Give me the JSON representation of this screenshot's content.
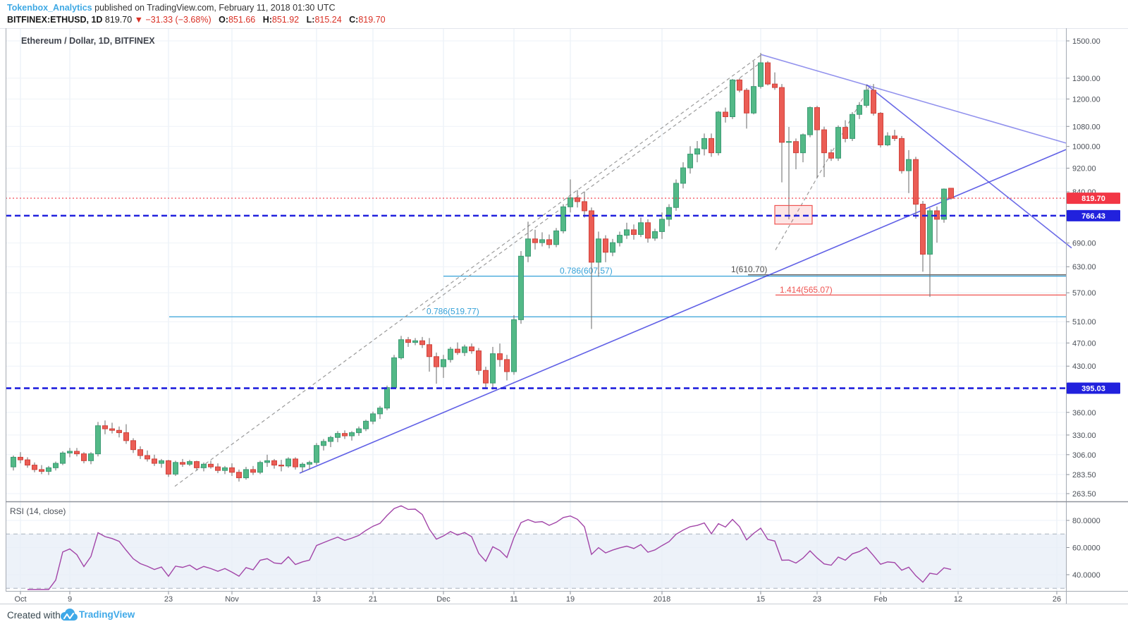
{
  "header": {
    "author": "Tokenbox_Analytics",
    "published": " published on TradingView.com, February 11, 2018 01:30 UTC",
    "symbol": "BITFINEX:ETHUSD, 1D",
    "last_price": "819.70",
    "change": "▼ −31.33 (−3.68%)",
    "ohlc": [
      {
        "label": "O:",
        "value": "851.66"
      },
      {
        "label": "H:",
        "value": "851.92"
      },
      {
        "label": "L:",
        "value": "815.24"
      },
      {
        "label": "C:",
        "value": "819.70"
      }
    ]
  },
  "chart_title": "Ethereum / Dollar, 1D, BITFINEX",
  "rsi_panel": {
    "label": "RSI (14, close)",
    "axis_ticks": [
      80,
      60,
      40
    ],
    "band_upper": 70,
    "band_lower": 30,
    "line_color": "#a245a8",
    "band_fill": "#e7eef7"
  },
  "footer": {
    "created": "Created with",
    "brand": "TradingView"
  },
  "price_axis": {
    "ticks": [
      1500,
      1300,
      1200,
      1080,
      1000,
      920,
      840,
      690,
      630,
      570,
      510,
      470,
      430,
      360,
      330,
      306,
      283.5,
      263.5
    ],
    "badges": [
      {
        "text": "819.70",
        "value": 819.7,
        "color": "#f23645"
      },
      {
        "text": "766.43",
        "value": 766.43,
        "color": "#2121dd"
      },
      {
        "text": "395.03",
        "value": 395.03,
        "color": "#2121dd"
      }
    ]
  },
  "time_axis": {
    "ticks": [
      {
        "label": "Oct",
        "i": 1
      },
      {
        "label": "9",
        "i": 8
      },
      {
        "label": "23",
        "i": 22
      },
      {
        "label": "Nov",
        "i": 31
      },
      {
        "label": "13",
        "i": 43
      },
      {
        "label": "21",
        "i": 51
      },
      {
        "label": "Dec",
        "i": 61
      },
      {
        "label": "11",
        "i": 71
      },
      {
        "label": "19",
        "i": 79
      },
      {
        "label": "2018",
        "i": 92
      },
      {
        "label": "15",
        "i": 106
      },
      {
        "label": "23",
        "i": 114
      },
      {
        "label": "Feb",
        "i": 123
      },
      {
        "label": "12",
        "i": 134
      },
      {
        "label": "26",
        "i": 148
      }
    ]
  },
  "chart_data": {
    "type": "candlestick",
    "symbol": "ETHUSD",
    "interval": "1D",
    "y_scale": "log",
    "y_range": [
      263.5,
      1500
    ],
    "up_color": "#53b987",
    "down_color": "#eb5d55",
    "candles": [
      [
        292,
        305,
        288,
        303
      ],
      [
        303,
        309,
        296,
        300
      ],
      [
        300,
        303,
        291,
        294
      ],
      [
        294,
        297,
        286,
        289
      ],
      [
        289,
        294,
        284,
        287
      ],
      [
        287,
        293,
        283,
        291
      ],
      [
        291,
        298,
        288,
        296
      ],
      [
        296,
        310,
        294,
        308
      ],
      [
        308,
        314,
        303,
        310
      ],
      [
        310,
        314,
        304,
        307
      ],
      [
        307,
        309,
        296,
        299
      ],
      [
        299,
        309,
        295,
        307
      ],
      [
        307,
        347,
        304,
        342
      ],
      [
        342,
        349,
        331,
        338
      ],
      [
        338,
        346,
        332,
        336
      ],
      [
        336,
        341,
        327,
        333
      ],
      [
        333,
        344,
        319,
        323
      ],
      [
        323,
        326,
        308,
        312
      ],
      [
        312,
        316,
        301,
        305
      ],
      [
        305,
        311,
        298,
        301
      ],
      [
        301,
        306,
        293,
        296
      ],
      [
        296,
        301,
        291,
        299
      ],
      [
        299,
        300,
        281,
        284
      ],
      [
        284,
        299,
        282,
        297
      ],
      [
        297,
        301,
        292,
        295
      ],
      [
        295,
        300,
        293,
        298
      ],
      [
        298,
        299,
        288,
        291
      ],
      [
        291,
        297,
        287,
        295
      ],
      [
        295,
        299,
        290,
        292
      ],
      [
        292,
        296,
        285,
        288
      ],
      [
        288,
        293,
        284,
        291
      ],
      [
        291,
        296,
        282,
        286
      ],
      [
        286,
        289,
        276,
        280
      ],
      [
        280,
        292,
        278,
        289
      ],
      [
        289,
        293,
        283,
        286
      ],
      [
        286,
        299,
        284,
        297
      ],
      [
        297,
        306,
        292,
        299
      ],
      [
        299,
        301,
        290,
        294
      ],
      [
        294,
        300,
        287,
        293
      ],
      [
        293,
        303,
        291,
        301
      ],
      [
        301,
        303,
        289,
        292
      ],
      [
        292,
        297,
        286,
        295
      ],
      [
        295,
        299,
        289,
        297
      ],
      [
        297,
        320,
        294,
        317
      ],
      [
        317,
        325,
        311,
        322
      ],
      [
        322,
        329,
        315,
        327
      ],
      [
        327,
        335,
        321,
        332
      ],
      [
        332,
        336,
        325,
        329
      ],
      [
        329,
        335,
        323,
        333
      ],
      [
        333,
        341,
        329,
        338
      ],
      [
        338,
        350,
        335,
        348
      ],
      [
        348,
        361,
        344,
        358
      ],
      [
        358,
        369,
        351,
        366
      ],
      [
        366,
        399,
        363,
        396
      ],
      [
        396,
        449,
        394,
        444
      ],
      [
        444,
        483,
        441,
        476
      ],
      [
        476,
        481,
        463,
        471
      ],
      [
        471,
        479,
        466,
        474
      ],
      [
        474,
        481,
        461,
        467
      ],
      [
        467,
        479,
        421,
        446
      ],
      [
        446,
        453,
        402,
        429
      ],
      [
        429,
        449,
        411,
        441
      ],
      [
        441,
        463,
        436,
        459
      ],
      [
        459,
        471,
        449,
        453
      ],
      [
        453,
        467,
        447,
        463
      ],
      [
        463,
        469,
        451,
        456
      ],
      [
        456,
        461,
        416,
        423
      ],
      [
        423,
        429,
        394,
        403
      ],
      [
        403,
        463,
        393,
        451
      ],
      [
        451,
        469,
        429,
        441
      ],
      [
        441,
        449,
        407,
        421
      ],
      [
        421,
        523,
        416,
        514
      ],
      [
        514,
        669,
        506,
        656
      ],
      [
        656,
        749,
        641,
        701
      ],
      [
        701,
        726,
        673,
        691
      ],
      [
        691,
        719,
        681,
        699
      ],
      [
        699,
        713,
        676,
        686
      ],
      [
        686,
        731,
        679,
        723
      ],
      [
        723,
        801,
        716,
        793
      ],
      [
        793,
        881,
        776,
        821
      ],
      [
        821,
        846,
        791,
        809
      ],
      [
        809,
        841,
        761,
        781
      ],
      [
        781,
        791,
        496,
        641
      ],
      [
        641,
        721,
        606,
        701
      ],
      [
        701,
        711,
        641,
        666
      ],
      [
        666,
        701,
        656,
        691
      ],
      [
        691,
        721,
        681,
        711
      ],
      [
        711,
        746,
        701,
        726
      ],
      [
        726,
        741,
        699,
        713
      ],
      [
        713,
        761,
        706,
        746
      ],
      [
        746,
        756,
        691,
        703
      ],
      [
        703,
        729,
        696,
        721
      ],
      [
        721,
        776,
        701,
        756
      ],
      [
        756,
        801,
        736,
        791
      ],
      [
        791,
        881,
        781,
        868
      ],
      [
        868,
        941,
        851,
        921
      ],
      [
        921,
        1001,
        901,
        971
      ],
      [
        971,
        1021,
        941,
        991
      ],
      [
        991,
        1051,
        966,
        1031
      ],
      [
        1031,
        1051,
        961,
        976
      ],
      [
        976,
        1146,
        966,
        1141
      ],
      [
        1141,
        1161,
        1096,
        1121
      ],
      [
        1121,
        1296,
        1111,
        1291
      ],
      [
        1291,
        1299,
        1231,
        1241
      ],
      [
        1241,
        1251,
        1071,
        1137
      ],
      [
        1137,
        1388,
        1131,
        1259
      ],
      [
        1259,
        1432,
        1249,
        1379
      ],
      [
        1379,
        1388,
        1264,
        1271
      ],
      [
        1271,
        1329,
        1243,
        1254
      ],
      [
        1254,
        1271,
        871,
        1016
      ],
      [
        1016,
        1078,
        756,
        1019
      ],
      [
        1019,
        1031,
        916,
        976
      ],
      [
        976,
        1051,
        941,
        1046
      ],
      [
        1046,
        1166,
        1036,
        1161
      ],
      [
        1161,
        1169,
        886,
        1066
      ],
      [
        1066,
        1079,
        889,
        976
      ],
      [
        976,
        989,
        946,
        956
      ],
      [
        956,
        1084,
        946,
        1076
      ],
      [
        1076,
        1106,
        1016,
        1031
      ],
      [
        1031,
        1141,
        1021,
        1131
      ],
      [
        1131,
        1186,
        1111,
        1171
      ],
      [
        1171,
        1268,
        1161,
        1241
      ],
      [
        1241,
        1271,
        1126,
        1136
      ],
      [
        1136,
        1141,
        996,
        1006
      ],
      [
        1006,
        1056,
        1001,
        1041
      ],
      [
        1041,
        1066,
        1021,
        1031
      ],
      [
        1031,
        1041,
        901,
        911
      ],
      [
        911,
        986,
        836,
        951
      ],
      [
        951,
        961,
        758,
        801
      ],
      [
        801,
        811,
        618,
        661
      ],
      [
        661,
        789,
        561,
        781
      ],
      [
        781,
        794,
        691,
        756
      ],
      [
        756,
        851,
        746,
        849
      ],
      [
        851.66,
        851.92,
        815.24,
        819.7
      ]
    ],
    "current_price_line": {
      "value": 819.7,
      "color": "#f23645"
    },
    "level_lines": [
      {
        "value": 766.43,
        "color": "#2121dd"
      },
      {
        "value": 395.03,
        "color": "#2121dd"
      }
    ],
    "fib_lines": [
      {
        "label": "0.786(607.57)",
        "value": 607.57,
        "from_i": 61,
        "label_i": 77.5,
        "color": "#35a1d8"
      },
      {
        "label": "0.786(519.77)",
        "value": 519.77,
        "from_i": 22.1,
        "label_i": 58.6,
        "color": "#35a1d8"
      },
      {
        "label": "1(610.70)",
        "value": 610.7,
        "from_i": 104.2,
        "label_i": 101.8,
        "color": "#4d4d4d"
      },
      {
        "label": "1.414(565.07)",
        "value": 565.07,
        "from_i": 108.1,
        "label_i": 108.7,
        "color": "#ef5350"
      }
    ],
    "trend_lines": [
      {
        "i1": 106,
        "p1": 1424,
        "i2": 149.3,
        "p2": 1013,
        "opacity": 0.55
      },
      {
        "i1": 121,
        "p1": 1268,
        "i2": 150.1,
        "p2": 677,
        "opacity": 0.75
      },
      {
        "i1": 40.6,
        "p1": 285,
        "i2": 149.3,
        "p2": 988,
        "opacity": 0.8
      }
    ],
    "dashed_trend_lines": [
      {
        "i1": 22.9,
        "p1": 271,
        "i2": 106,
        "p2": 1420
      },
      {
        "i1": 58,
        "p1": 533,
        "i2": 106,
        "p2": 1380
      },
      {
        "i1": 108.1,
        "p1": 672,
        "i2": 121.6,
        "p2": 1268
      }
    ],
    "highlight_box": {
      "i1": 108,
      "i2": 113.3,
      "p1": 742,
      "p2": 797
    }
  }
}
